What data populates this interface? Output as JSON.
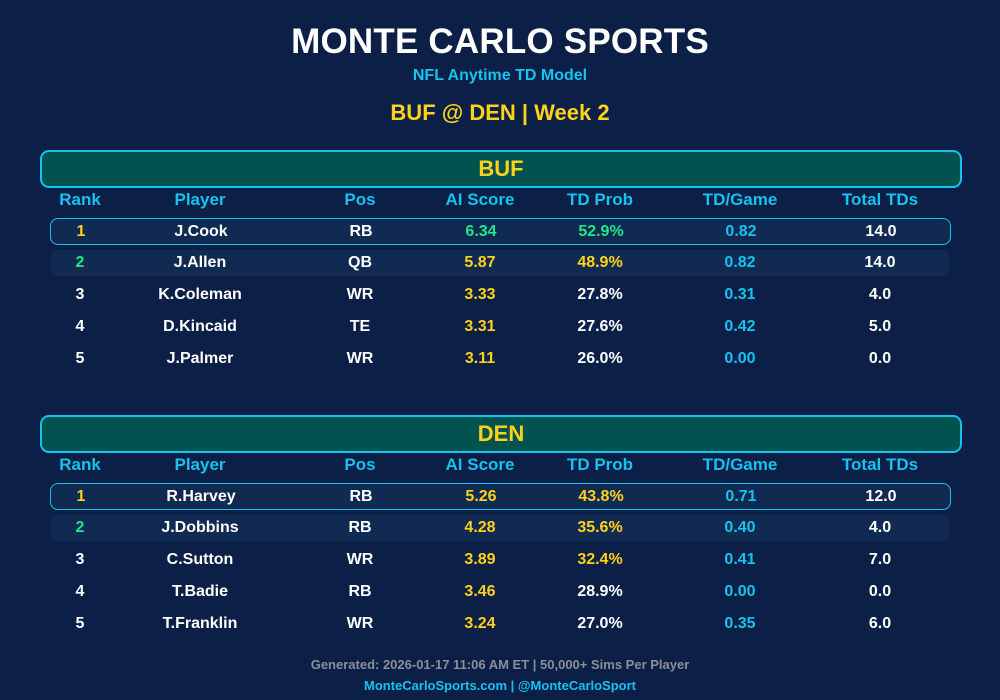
{
  "header": {
    "title": "MONTE CARLO SPORTS",
    "subtitle": "NFL Anytime TD Model",
    "matchup": "BUF @ DEN | Week 2"
  },
  "columns": [
    "Rank",
    "Player",
    "Pos",
    "AI Score",
    "TD Prob",
    "TD/Game",
    "Total TDs"
  ],
  "colors": {
    "background": "#0c1f46",
    "accent_cyan": "#16c3ef",
    "accent_yellow": "#ffd21a",
    "accent_green": "#1ee88a",
    "team_header_bg": "#02524f",
    "white": "#ffffff",
    "footer_gray": "#8a8f99"
  },
  "teams": [
    {
      "name": "BUF",
      "players": [
        {
          "rank": "1",
          "player": "J.Cook",
          "pos": "RB",
          "ai_score": "6.34",
          "td_prob": "52.9%",
          "td_game": "0.82",
          "total_tds": "14.0",
          "rank_color": "#ffd21a",
          "score_color": "#1ee88a",
          "prob_color": "#1ee88a"
        },
        {
          "rank": "2",
          "player": "J.Allen",
          "pos": "QB",
          "ai_score": "5.87",
          "td_prob": "48.9%",
          "td_game": "0.82",
          "total_tds": "14.0",
          "rank_color": "#1ee88a",
          "score_color": "#ffd21a",
          "prob_color": "#ffd21a"
        },
        {
          "rank": "3",
          "player": "K.Coleman",
          "pos": "WR",
          "ai_score": "3.33",
          "td_prob": "27.8%",
          "td_game": "0.31",
          "total_tds": "4.0",
          "rank_color": "#ffffff",
          "score_color": "#ffd21a",
          "prob_color": "#ffffff"
        },
        {
          "rank": "4",
          "player": "D.Kincaid",
          "pos": "TE",
          "ai_score": "3.31",
          "td_prob": "27.6%",
          "td_game": "0.42",
          "total_tds": "5.0",
          "rank_color": "#ffffff",
          "score_color": "#ffd21a",
          "prob_color": "#ffffff"
        },
        {
          "rank": "5",
          "player": "J.Palmer",
          "pos": "WR",
          "ai_score": "3.11",
          "td_prob": "26.0%",
          "td_game": "0.00",
          "total_tds": "0.0",
          "rank_color": "#ffffff",
          "score_color": "#ffd21a",
          "prob_color": "#ffffff"
        }
      ]
    },
    {
      "name": "DEN",
      "players": [
        {
          "rank": "1",
          "player": "R.Harvey",
          "pos": "RB",
          "ai_score": "5.26",
          "td_prob": "43.8%",
          "td_game": "0.71",
          "total_tds": "12.0",
          "rank_color": "#ffd21a",
          "score_color": "#ffd21a",
          "prob_color": "#ffd21a"
        },
        {
          "rank": "2",
          "player": "J.Dobbins",
          "pos": "RB",
          "ai_score": "4.28",
          "td_prob": "35.6%",
          "td_game": "0.40",
          "total_tds": "4.0",
          "rank_color": "#1ee88a",
          "score_color": "#ffd21a",
          "prob_color": "#ffd21a"
        },
        {
          "rank": "3",
          "player": "C.Sutton",
          "pos": "WR",
          "ai_score": "3.89",
          "td_prob": "32.4%",
          "td_game": "0.41",
          "total_tds": "7.0",
          "rank_color": "#ffffff",
          "score_color": "#ffd21a",
          "prob_color": "#ffd21a"
        },
        {
          "rank": "4",
          "player": "T.Badie",
          "pos": "RB",
          "ai_score": "3.46",
          "td_prob": "28.9%",
          "td_game": "0.00",
          "total_tds": "0.0",
          "rank_color": "#ffffff",
          "score_color": "#ffd21a",
          "prob_color": "#ffffff"
        },
        {
          "rank": "5",
          "player": "T.Franklin",
          "pos": "WR",
          "ai_score": "3.24",
          "td_prob": "27.0%",
          "td_game": "0.35",
          "total_tds": "6.0",
          "rank_color": "#ffffff",
          "score_color": "#ffd21a",
          "prob_color": "#ffffff"
        }
      ]
    }
  ],
  "footer": {
    "generated": "Generated: 2026-01-17 11:06 AM ET | 50,000+ Sims Per Player",
    "links": "MonteCarloSports.com | @MonteCarloSport"
  }
}
